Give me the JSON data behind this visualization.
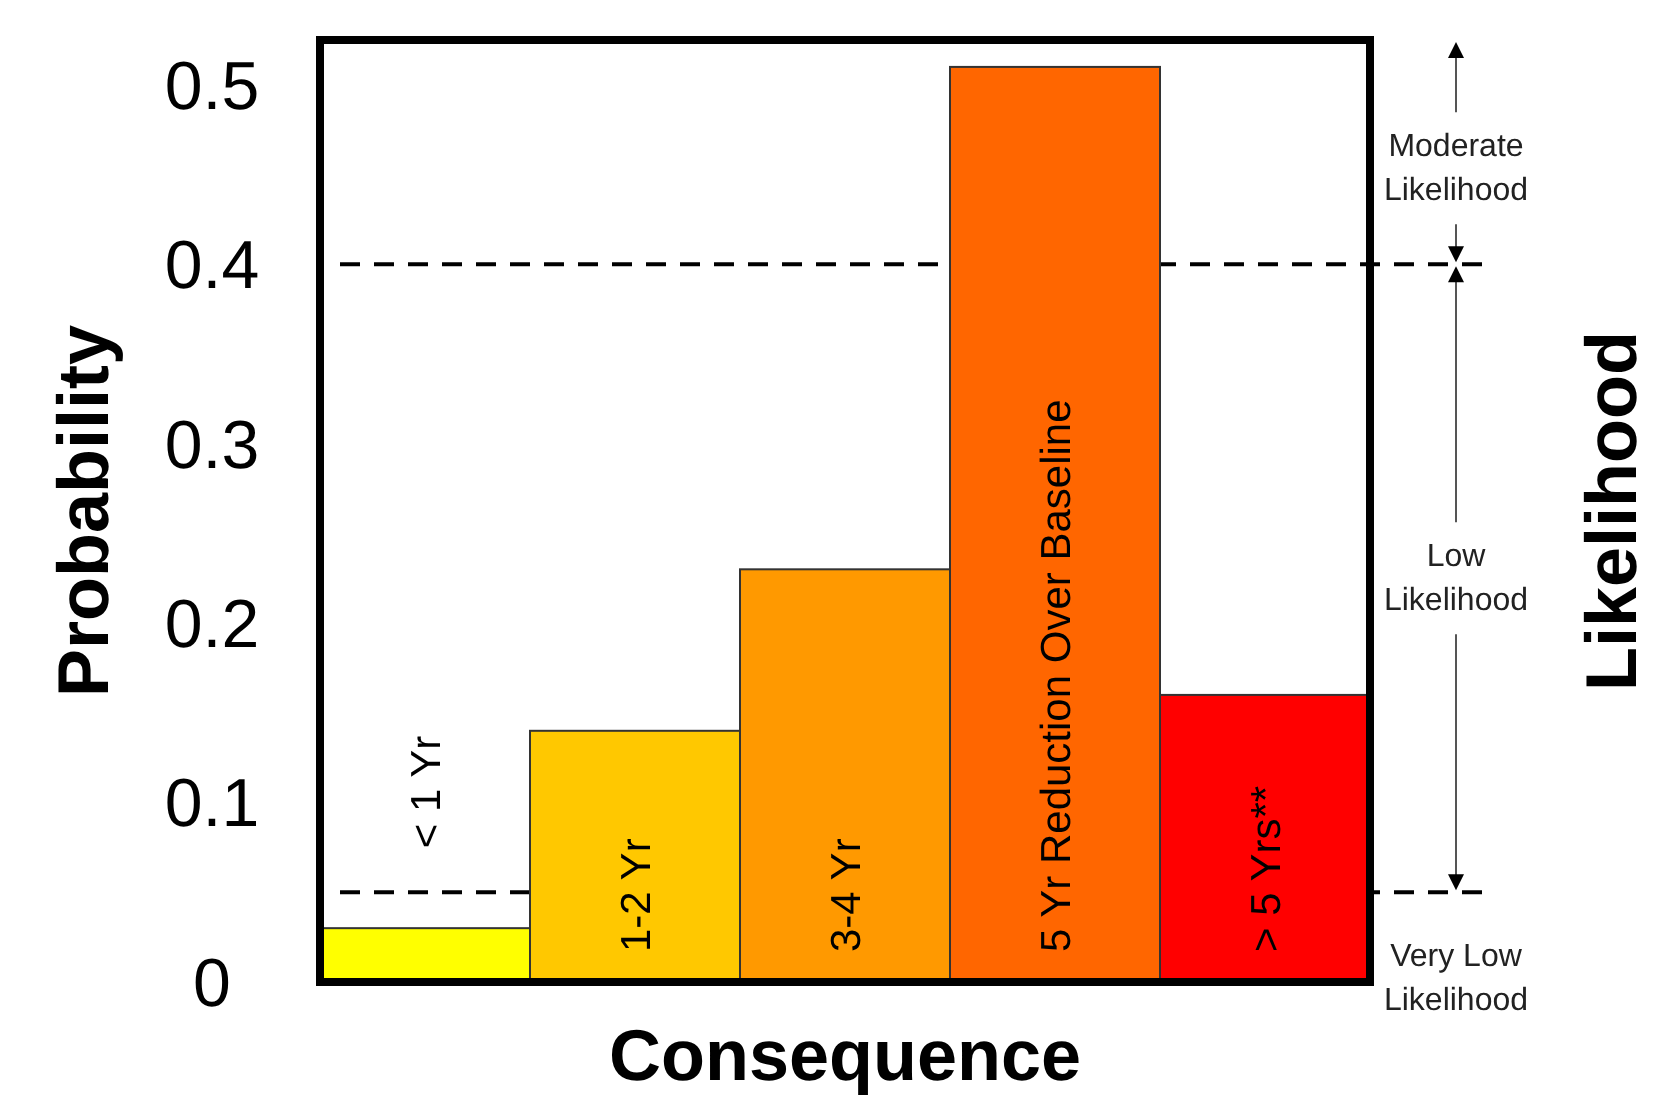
{
  "chart_data": {
    "type": "bar",
    "categories": [
      "< 1 Yr",
      "1-2 Yr",
      "3-4 Yr",
      "5 Yr Reduction Over Baseline",
      "> 5 Yrs**"
    ],
    "values": [
      0.03,
      0.14,
      0.23,
      0.51,
      0.16
    ],
    "colors": [
      "#ffff00",
      "#ffc800",
      "#ff9900",
      "#ff6600",
      "#ff0000"
    ],
    "xlabel": "Consequence",
    "ylabel": "Probability",
    "y2label": "Likelihood",
    "ylim": [
      0,
      0.525
    ],
    "yticks": [
      0,
      0.1,
      0.2,
      0.3,
      0.4,
      0.5
    ],
    "ref_lines": [
      {
        "axis": "y",
        "value": 0.4,
        "line_style": "dashed"
      },
      {
        "axis": "y",
        "value": 0.05,
        "line_style": "dashed"
      }
    ],
    "annotations": [
      "Moderate Likelihood",
      "Low Likelihood",
      "Very Low Likelihood"
    ]
  }
}
